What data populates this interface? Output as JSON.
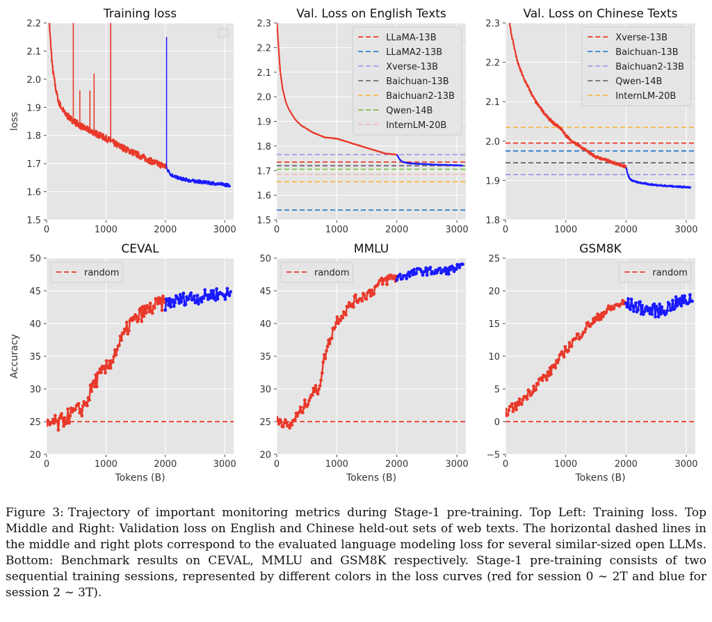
{
  "figure": {
    "caption_label": "Figure 3:",
    "caption_text": "Trajectory of important monitoring metrics during Stage-1 pre-training. Top Left: Training loss. Top Middle and Right: Validation loss on English and Chinese held-out sets of web texts. The horizontal dashed lines in the middle and right plots correspond to the evaluated language modeling loss for several similar-sized open LLMs. Bottom: Benchmark results on CEVAL, MMLU and GSM8K respectively. Stage-1 pre-training consists of two sequential training sessions, represented by different colors in the loss curves (red for session 0 ∼ 2T and blue for session 2 ∼ 3T)."
  },
  "colors": {
    "session1": "#e8392a",
    "session2": "#1a1aff",
    "panel_bg": "#e5e5e5",
    "grid": "#ffffff"
  },
  "chart_data": [
    {
      "id": "training-loss",
      "type": "line",
      "title": "Training loss",
      "xlabel": "",
      "ylabel": "loss",
      "xlim": [
        0,
        3150
      ],
      "ylim": [
        1.5,
        2.2
      ],
      "xticks": [
        0,
        1000,
        2000,
        3000
      ],
      "yticks": [
        1.5,
        1.6,
        1.7,
        1.8,
        1.9,
        2.0,
        2.1,
        2.2
      ],
      "ytick_decimals": 1,
      "legend_empty": true,
      "series": [
        {
          "session": 1,
          "noise": 0.012,
          "x": [
            20,
            50,
            100,
            150,
            200,
            300,
            400,
            500,
            600,
            700,
            800,
            1000,
            1200,
            1400,
            1600,
            1800,
            2000,
            2030
          ],
          "y": [
            2.35,
            2.18,
            2.04,
            1.97,
            1.92,
            1.88,
            1.86,
            1.845,
            1.83,
            1.82,
            1.81,
            1.79,
            1.765,
            1.745,
            1.725,
            1.705,
            1.69,
            1.685
          ]
        },
        {
          "session": 2,
          "noise": 0.006,
          "x": [
            2030,
            2100,
            2200,
            2400,
            2600,
            2800,
            3000,
            3100
          ],
          "y": [
            1.68,
            1.66,
            1.65,
            1.64,
            1.635,
            1.63,
            1.625,
            1.622
          ]
        }
      ],
      "spikes": [
        {
          "session": 1,
          "x": 450,
          "y": 2.2
        },
        {
          "session": 1,
          "x": 560,
          "y": 1.96
        },
        {
          "session": 1,
          "x": 730,
          "y": 1.96
        },
        {
          "session": 1,
          "x": 800,
          "y": 2.02
        },
        {
          "session": 1,
          "x": 1080,
          "y": 2.2
        },
        {
          "session": 2,
          "x": 2020,
          "y": 2.15
        }
      ]
    },
    {
      "id": "val-loss-english",
      "type": "line",
      "title": "Val. Loss on English Texts",
      "xlabel": "",
      "ylabel": "",
      "xlim": [
        0,
        3150
      ],
      "ylim": [
        1.5,
        2.3
      ],
      "xticks": [
        0,
        1000,
        2000,
        3000
      ],
      "yticks": [
        1.5,
        1.6,
        1.7,
        1.8,
        1.9,
        2.0,
        2.1,
        2.2,
        2.3
      ],
      "ytick_decimals": 1,
      "legend_position": "top-right",
      "series": [
        {
          "session": 1,
          "noise": 0.001,
          "x": [
            0,
            30,
            60,
            100,
            150,
            200,
            300,
            400,
            500,
            600,
            800,
            1000,
            1200,
            1400,
            1600,
            1800,
            2000
          ],
          "y": [
            2.32,
            2.2,
            2.1,
            2.03,
            1.98,
            1.95,
            1.91,
            1.885,
            1.87,
            1.855,
            1.835,
            1.83,
            1.815,
            1.8,
            1.785,
            1.77,
            1.765
          ]
        },
        {
          "session": 2,
          "noise": 0.001,
          "x": [
            2000,
            2050,
            2100,
            2200,
            2400,
            2600,
            2800,
            3000,
            3100
          ],
          "y": [
            1.765,
            1.745,
            1.735,
            1.73,
            1.727,
            1.725,
            1.723,
            1.722,
            1.72
          ]
        }
      ],
      "references": [
        {
          "name": "LLaMA-13B",
          "y": 1.735,
          "color": "#e8392a"
        },
        {
          "name": "LLaMA2-13B",
          "y": 1.54,
          "color": "#2f7fd1"
        },
        {
          "name": "Xverse-13B",
          "y": 1.765,
          "color": "#9f9ce6"
        },
        {
          "name": "Baichuan-13B",
          "y": 1.72,
          "color": "#6a6a6a"
        },
        {
          "name": "Baichuan2-13B",
          "y": 1.655,
          "color": "#f5b94a"
        },
        {
          "name": "Qwen-14B",
          "y": 1.705,
          "color": "#7cbc3a"
        },
        {
          "name": "InternLM-20B",
          "y": 1.685,
          "color": "#f5b8b8"
        }
      ]
    },
    {
      "id": "val-loss-chinese",
      "type": "line",
      "title": "Val. Loss on Chinese Texts",
      "xlabel": "",
      "ylabel": "",
      "xlim": [
        0,
        3150
      ],
      "ylim": [
        1.8,
        2.3
      ],
      "xticks": [
        0,
        1000,
        2000,
        3000
      ],
      "yticks": [
        1.8,
        1.9,
        2.0,
        2.1,
        2.2,
        2.3
      ],
      "ytick_decimals": 1,
      "legend_position": "top-right",
      "series": [
        {
          "session": 1,
          "noise": 0.004,
          "x": [
            50,
            100,
            200,
            300,
            400,
            500,
            600,
            700,
            800,
            900,
            1000,
            1100,
            1200,
            1300,
            1400,
            1500,
            1600,
            1700,
            1800,
            1900,
            2000
          ],
          "y": [
            2.32,
            2.27,
            2.2,
            2.16,
            2.13,
            2.1,
            2.08,
            2.06,
            2.045,
            2.035,
            2.015,
            2.0,
            1.99,
            1.98,
            1.97,
            1.96,
            1.955,
            1.95,
            1.945,
            1.94,
            1.935
          ]
        },
        {
          "session": 2,
          "noise": 0.002,
          "x": [
            2000,
            2030,
            2060,
            2100,
            2200,
            2400,
            2600,
            2800,
            3000,
            3080
          ],
          "y": [
            1.935,
            1.915,
            1.905,
            1.9,
            1.895,
            1.89,
            1.887,
            1.885,
            1.883,
            1.882
          ]
        }
      ],
      "references": [
        {
          "name": "Xverse-13B",
          "y": 1.995,
          "color": "#e8392a"
        },
        {
          "name": "Baichuan-13B",
          "y": 1.975,
          "color": "#2f7fd1"
        },
        {
          "name": "Baichuan2-13B",
          "y": 1.915,
          "color": "#9f9ce6"
        },
        {
          "name": "Qwen-14B",
          "y": 1.945,
          "color": "#6a6a6a"
        },
        {
          "name": "InternLM-20B",
          "y": 2.035,
          "color": "#f5b94a"
        }
      ]
    },
    {
      "id": "ceval",
      "type": "line",
      "title": "CEVAL",
      "xlabel": "Tokens (B)",
      "ylabel": "Accuracy",
      "xlim": [
        0,
        3150
      ],
      "ylim": [
        20,
        50
      ],
      "xticks": [
        0,
        1000,
        2000,
        3000
      ],
      "yticks": [
        20,
        25,
        30,
        35,
        40,
        45,
        50
      ],
      "ytick_decimals": 0,
      "legend_position": "top-left",
      "markers": true,
      "series": [
        {
          "session": 1,
          "noise": 1.2,
          "x": [
            0,
            100,
            200,
            300,
            400,
            500,
            600,
            700,
            800,
            900,
            1000,
            1100,
            1200,
            1300,
            1400,
            1500,
            1600,
            1700,
            1800,
            1900,
            2000
          ],
          "y": [
            24,
            25,
            24.5,
            25.5,
            26,
            26.5,
            27,
            28.5,
            31,
            32,
            33,
            34.5,
            36.5,
            38,
            40,
            40.5,
            41.5,
            42,
            42.5,
            43,
            43
          ]
        },
        {
          "session": 2,
          "noise": 1.0,
          "x": [
            2000,
            2200,
            2400,
            2600,
            2800,
            3000,
            3100
          ],
          "y": [
            43,
            43.5,
            44,
            44,
            44.5,
            44.5,
            44.5
          ]
        }
      ],
      "references": [
        {
          "name": "random",
          "y": 25,
          "color": "#e8392a"
        }
      ]
    },
    {
      "id": "mmlu",
      "type": "line",
      "title": "MMLU",
      "xlabel": "Tokens (B)",
      "ylabel": "",
      "xlim": [
        0,
        3150
      ],
      "ylim": [
        20,
        50
      ],
      "xticks": [
        0,
        1000,
        2000,
        3000
      ],
      "yticks": [
        20,
        25,
        30,
        35,
        40,
        45,
        50
      ],
      "ytick_decimals": 0,
      "legend_position": "top-left",
      "markers": true,
      "series": [
        {
          "session": 1,
          "noise": 0.8,
          "x": [
            0,
            100,
            200,
            300,
            400,
            500,
            600,
            700,
            800,
            900,
            1000,
            1100,
            1200,
            1300,
            1400,
            1500,
            1600,
            1700,
            1800,
            1900,
            2000
          ],
          "y": [
            25.5,
            25,
            24,
            25.5,
            26.5,
            28,
            29.5,
            30,
            35,
            38,
            40.5,
            41.5,
            42.5,
            43.5,
            44,
            44.5,
            45,
            46,
            46.5,
            47,
            47
          ]
        },
        {
          "session": 2,
          "noise": 0.6,
          "x": [
            2000,
            2200,
            2400,
            2600,
            2800,
            3000,
            3100
          ],
          "y": [
            47,
            47.5,
            48,
            48,
            48,
            48.5,
            48.5
          ]
        }
      ],
      "references": [
        {
          "name": "random",
          "y": 25,
          "color": "#e8392a"
        }
      ]
    },
    {
      "id": "gsm8k",
      "type": "line",
      "title": "GSM8K",
      "xlabel": "Tokens (B)",
      "ylabel": "",
      "xlim": [
        0,
        3150
      ],
      "ylim": [
        -5,
        25
      ],
      "xticks": [
        0,
        1000,
        2000,
        3000
      ],
      "yticks": [
        -5,
        0,
        5,
        10,
        15,
        20,
        25
      ],
      "ytick_decimals": 0,
      "legend_position": "top-right",
      "markers": true,
      "series": [
        {
          "session": 1,
          "noise": 0.7,
          "x": [
            0,
            100,
            200,
            300,
            400,
            500,
            600,
            700,
            800,
            900,
            1000,
            1100,
            1200,
            1300,
            1400,
            1500,
            1600,
            1700,
            1800,
            1900,
            2000
          ],
          "y": [
            1.5,
            2,
            2.5,
            3.5,
            4.5,
            5.5,
            6.5,
            7,
            8.5,
            9.5,
            11,
            12,
            13,
            14,
            15,
            15.5,
            16.5,
            17,
            17.5,
            18,
            18
          ]
        },
        {
          "session": 2,
          "noise": 1.0,
          "x": [
            2000,
            2200,
            2400,
            2600,
            2800,
            3000,
            3100
          ],
          "y": [
            18,
            17.5,
            17,
            17,
            18,
            18.5,
            19
          ]
        }
      ],
      "references": [
        {
          "name": "random",
          "y": 0,
          "color": "#e8392a"
        }
      ]
    }
  ]
}
